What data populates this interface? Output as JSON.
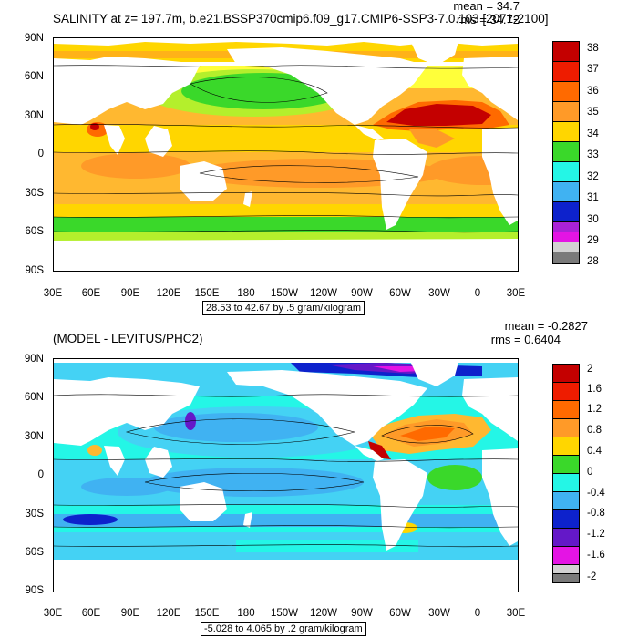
{
  "panel1": {
    "title": "SALINITY at z= 197.7m, b.e21.BSSP370cmip6.f09_g17.CMIP6-SSP3-7.0.103 [2071-2100]",
    "mean": "mean = 34.7",
    "rms": "rms = 34.72",
    "range_text": "28.53 to 42.67 by .5 gram/kilogram",
    "y_labels": [
      "90N",
      "60N",
      "30N",
      "0",
      "30S",
      "60S",
      "90S"
    ],
    "x_labels": [
      "30E",
      "60E",
      "90E",
      "120E",
      "150E",
      "180",
      "150W",
      "120W",
      "90W",
      "60W",
      "30W",
      "0",
      "30E"
    ],
    "colorbar": {
      "labels": [
        "38",
        "37",
        "36",
        "35",
        "34",
        "33",
        "32",
        "31",
        "30",
        "29",
        "28"
      ],
      "colors": [
        "#c40000",
        "#ee1c00",
        "#ff6a00",
        "#ff9a28",
        "#ffb830",
        "#ffd600",
        "#ffff3a",
        "#b4ef2c",
        "#3ad82a",
        "#16d8a4",
        "#24f6e6",
        "#44d2f4",
        "#40b2f2",
        "#2e78ee",
        "#0d22cc",
        "#6418c8",
        "#aa22d6",
        "#e414e4",
        "#d2d2d2",
        "#7a7a7a"
      ]
    }
  },
  "panel2": {
    "title": "(MODEL - LEVITUS/PHC2)",
    "mean": "mean = -0.2827",
    "rms": "rms = 0.6404",
    "range_text": "-5.028 to 4.065 by .2 gram/kilogram",
    "y_labels": [
      "90N",
      "60N",
      "30N",
      "0",
      "30S",
      "60S",
      "90S"
    ],
    "x_labels": [
      "30E",
      "60E",
      "90E",
      "120E",
      "150E",
      "180",
      "150W",
      "120W",
      "90W",
      "60W",
      "30W",
      "0",
      "30E"
    ],
    "colorbar": {
      "labels": [
        "2",
        "1.6",
        "1.2",
        "0.8",
        "0.4",
        "0",
        "-0.4",
        "-0.8",
        "-1.2",
        "-1.6",
        "-2"
      ],
      "colors": [
        "#c40000",
        "#ee1c00",
        "#ff6a00",
        "#ff9a28",
        "#ffb830",
        "#ffd600",
        "#ffff3a",
        "#b4ef2c",
        "#3ad82a",
        "#16d8a4",
        "#24f6e6",
        "#44d2f4",
        "#40b2f2",
        "#2e78ee",
        "#0d22cc",
        "#6418c8",
        "#aa22d6",
        "#e414e4",
        "#d2d2d2",
        "#7a7a7a"
      ]
    }
  }
}
